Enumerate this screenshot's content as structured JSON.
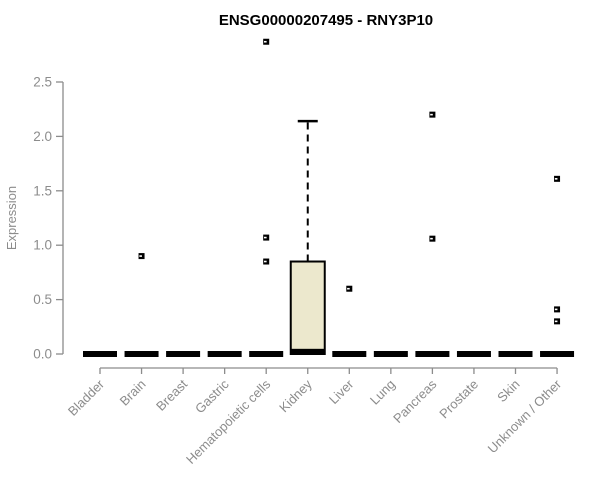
{
  "header": {
    "title": "ENSG00000207495 - RNY3P10"
  },
  "chart_data": {
    "type": "box",
    "title": "ENSG00000207495 - RNY3P10",
    "xlabel": "",
    "ylabel": "Expression",
    "ylim": [
      0,
      2.5
    ],
    "ytick_labels": [
      "0.0",
      "0.5",
      "1.0",
      "1.5",
      "2.0",
      "2.5"
    ],
    "yticks": [
      0.0,
      0.5,
      1.0,
      1.5,
      2.0,
      2.5
    ],
    "grid": false,
    "legend": "none",
    "categories": [
      "Bladder",
      "Brain",
      "Breast",
      "Gastric",
      "Hematopoietic cells",
      "Kidney",
      "Liver",
      "Lung",
      "Pancreas",
      "Prostate",
      "Skin",
      "Unknown / Other"
    ],
    "boxes": [
      {
        "category": "Bladder",
        "median": 0,
        "q1": 0,
        "q3": 0,
        "whisker_low": 0,
        "whisker_high": 0,
        "outliers": []
      },
      {
        "category": "Brain",
        "median": 0,
        "q1": 0,
        "q3": 0,
        "whisker_low": 0,
        "whisker_high": 0,
        "outliers": [
          0.9
        ]
      },
      {
        "category": "Breast",
        "median": 0,
        "q1": 0,
        "q3": 0,
        "whisker_low": 0,
        "whisker_high": 0,
        "outliers": []
      },
      {
        "category": "Gastric",
        "median": 0,
        "q1": 0,
        "q3": 0,
        "whisker_low": 0,
        "whisker_high": 0,
        "outliers": []
      },
      {
        "category": "Hematopoietic cells",
        "median": 0,
        "q1": 0,
        "q3": 0,
        "whisker_low": 0,
        "whisker_high": 0,
        "outliers": [
          2.87,
          1.07,
          0.85
        ]
      },
      {
        "category": "Kidney",
        "median": 0.02,
        "q1": 0,
        "q3": 0.85,
        "whisker_low": 0,
        "whisker_high": 2.14,
        "outliers": []
      },
      {
        "category": "Liver",
        "median": 0,
        "q1": 0,
        "q3": 0,
        "whisker_low": 0,
        "whisker_high": 0,
        "outliers": [
          0.6
        ]
      },
      {
        "category": "Lung",
        "median": 0,
        "q1": 0,
        "q3": 0,
        "whisker_low": 0,
        "whisker_high": 0,
        "outliers": []
      },
      {
        "category": "Pancreas",
        "median": 0,
        "q1": 0,
        "q3": 0,
        "whisker_low": 0,
        "whisker_high": 0,
        "outliers": [
          2.2,
          1.06
        ]
      },
      {
        "category": "Prostate",
        "median": 0,
        "q1": 0,
        "q3": 0,
        "whisker_low": 0,
        "whisker_high": 0,
        "outliers": []
      },
      {
        "category": "Skin",
        "median": 0,
        "q1": 0,
        "q3": 0,
        "whisker_low": 0,
        "whisker_high": 0,
        "outliers": []
      },
      {
        "category": "Unknown / Other",
        "median": 0,
        "q1": 0,
        "q3": 0,
        "whisker_low": 0,
        "whisker_high": 0,
        "outliers": [
          1.61,
          0.41,
          0.3
        ]
      }
    ],
    "colors": {
      "background": "#ffffff",
      "box_fill": "#ece8cd",
      "box_stroke": "#000000",
      "median": "#000000",
      "outlier": "#000000",
      "axis": "#8c8c8c",
      "tick_label": "#8c8c8c",
      "title": "#000000"
    }
  }
}
